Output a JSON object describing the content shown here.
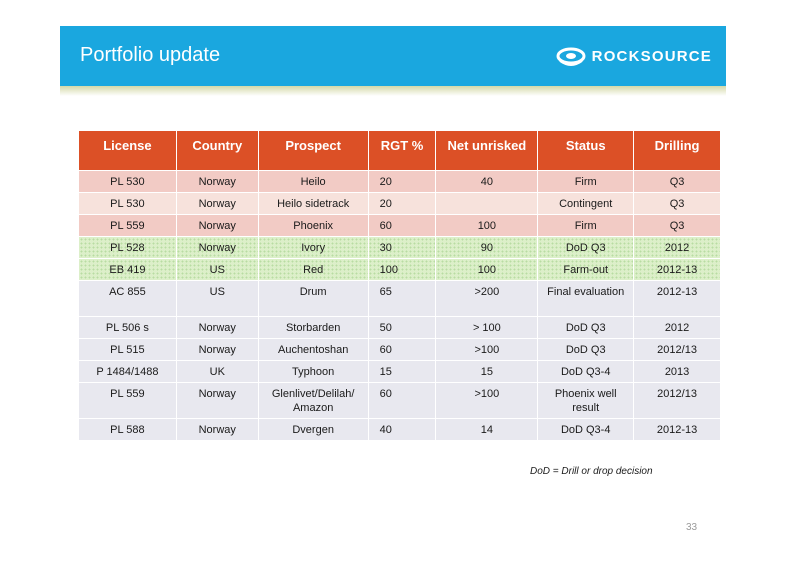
{
  "header": {
    "title": "Portfolio update",
    "logo_text": "ROCKSOURCE",
    "bg_color": "#1aa7df"
  },
  "table": {
    "header_color": "#dc5026",
    "columns": [
      "License",
      "Country",
      "Prospect",
      "RGT %",
      "Net unrisked",
      "Status",
      "Drilling"
    ],
    "rows": [
      {
        "license": "PL 530",
        "country": "Norway",
        "prospect": "Heilo",
        "rgt": "20",
        "net": "40",
        "status": "Firm",
        "drilling": "Q3"
      },
      {
        "license": "PL 530",
        "country": "Norway",
        "prospect": "Heilo sidetrack",
        "rgt": "20",
        "net": "",
        "status": "Contingent",
        "drilling": "Q3"
      },
      {
        "license": "PL 559",
        "country": "Norway",
        "prospect": "Phoenix",
        "rgt": "60",
        "net": "100",
        "status": "Firm",
        "drilling": "Q3"
      },
      {
        "license": "PL 528",
        "country": "Norway",
        "prospect": "Ivory",
        "rgt": "30",
        "net": "90",
        "status": "DoD Q3",
        "drilling": "2012"
      },
      {
        "license": "EB 419",
        "country": "US",
        "prospect": "Red",
        "rgt": "100",
        "net": "100",
        "status": "Farm-out",
        "drilling": "2012-13"
      },
      {
        "license": "AC 855",
        "country": "US",
        "prospect": "Drum",
        "rgt": "65",
        "net": ">200",
        "status": "Final evaluation",
        "drilling": "2012-13"
      },
      {
        "license": "PL 506 s",
        "country": "Norway",
        "prospect": "Storbarden",
        "rgt": "50",
        "net": "> 100",
        "status": "DoD Q3",
        "drilling": "2012"
      },
      {
        "license": "PL 515",
        "country": "Norway",
        "prospect": "Auchentoshan",
        "rgt": "60",
        "net": ">100",
        "status": "DoD Q3",
        "drilling": "2012/13"
      },
      {
        "license": "P 1484/1488",
        "country": "UK",
        "prospect": "Typhoon",
        "rgt": "15",
        "net": "15",
        "status": "DoD Q3-4",
        "drilling": "2013"
      },
      {
        "license": "PL 559",
        "country": "Norway",
        "prospect": "Glenlivet/Delilah/ Amazon",
        "rgt": "60",
        "net": ">100",
        "status": "Phoenix well result",
        "drilling": "2012/13"
      },
      {
        "license": "PL 588",
        "country": "Norway",
        "prospect": "Dvergen",
        "rgt": "40",
        "net": "14",
        "status": "DoD Q3-4",
        "drilling": "2012-13"
      }
    ]
  },
  "footnote": "DoD = Drill or drop decision",
  "page_number": "33"
}
